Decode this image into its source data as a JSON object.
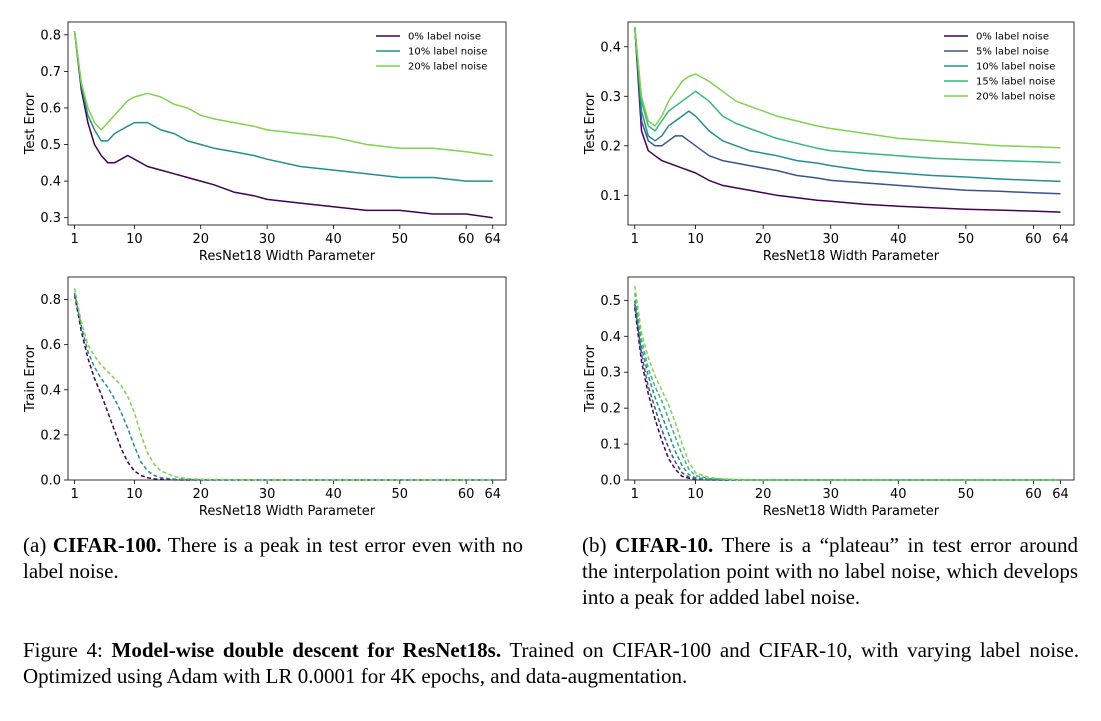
{
  "panels": [
    {
      "id": "a-test",
      "ylabel": "Test Error",
      "xlabel": "ResNet18 Width Parameter",
      "style": "solid",
      "xlim": [
        0,
        66
      ],
      "ylim": [
        0.28,
        0.835
      ],
      "yticks": [
        0.3,
        0.4,
        0.5,
        0.6,
        0.7,
        0.8
      ],
      "ytick_labels": [
        "0.3",
        "0.4",
        "0.5",
        "0.6",
        "0.7",
        "0.8"
      ],
      "legend": "top-right",
      "series": [
        "a-test-0",
        "a-test-10",
        "a-test-20"
      ]
    },
    {
      "id": "b-test",
      "ylabel": "Test Error",
      "xlabel": "ResNet18 Width Parameter",
      "style": "solid",
      "xlim": [
        0,
        66
      ],
      "ylim": [
        0.04,
        0.45
      ],
      "yticks": [
        0.1,
        0.2,
        0.3,
        0.4
      ],
      "ytick_labels": [
        "0.1",
        "0.2",
        "0.3",
        "0.4"
      ],
      "legend": "top-right",
      "series": [
        "b-test-0",
        "b-test-5",
        "b-test-10",
        "b-test-15",
        "b-test-20"
      ]
    },
    {
      "id": "a-train",
      "ylabel": "Train Error",
      "xlabel": "ResNet18 Width Parameter",
      "style": "dashed",
      "xlim": [
        0,
        66
      ],
      "ylim": [
        0,
        0.9
      ],
      "yticks": [
        0,
        0.2,
        0.4,
        0.6,
        0.8
      ],
      "ytick_labels": [
        "0.0",
        "0.2",
        "0.4",
        "0.6",
        "0.8"
      ],
      "legend": "none",
      "series": [
        "a-train-0",
        "a-train-10",
        "a-train-20"
      ]
    },
    {
      "id": "b-train",
      "ylabel": "Train Error",
      "xlabel": "ResNet18 Width Parameter",
      "style": "dashed",
      "xlim": [
        0,
        66
      ],
      "ylim": [
        0,
        0.565
      ],
      "yticks": [
        0,
        0.1,
        0.2,
        0.3,
        0.4,
        0.5
      ],
      "ytick_labels": [
        "0.0",
        "0.1",
        "0.2",
        "0.3",
        "0.4",
        "0.5"
      ],
      "legend": "none",
      "series": [
        "b-train-0",
        "b-train-5",
        "b-train-10",
        "b-train-15",
        "b-train-20"
      ]
    }
  ],
  "xticks": [
    1,
    10,
    20,
    30,
    40,
    50,
    60,
    64
  ],
  "xtick_labels": [
    "1",
    "10",
    "20",
    "30",
    "40",
    "50",
    "60",
    "64"
  ],
  "colors": {
    "noise_0": "#440154",
    "noise_5": "#3b528b",
    "noise_10": "#21908d",
    "noise_15": "#35b779",
    "noise_20": "#7fd34e",
    "axes": "#000000"
  },
  "chart_data": [
    {
      "type": "line",
      "panel": "a-test",
      "xlabel": "ResNet18 Width Parameter",
      "ylabel": "Test Error",
      "ylim": [
        0.28,
        0.835
      ],
      "series": [
        {
          "key": "a-test-0",
          "name": "0% label noise",
          "color": "#440154",
          "x": [
            1,
            2,
            3,
            4,
            5,
            6,
            7,
            8,
            9,
            10,
            12,
            14,
            16,
            18,
            20,
            22,
            25,
            28,
            30,
            35,
            40,
            45,
            50,
            55,
            60,
            64
          ],
          "y": [
            0.81,
            0.65,
            0.56,
            0.5,
            0.47,
            0.45,
            0.45,
            0.46,
            0.47,
            0.46,
            0.44,
            0.43,
            0.42,
            0.41,
            0.4,
            0.39,
            0.37,
            0.36,
            0.35,
            0.34,
            0.33,
            0.32,
            0.32,
            0.31,
            0.31,
            0.3
          ]
        },
        {
          "key": "a-test-10",
          "name": "10% label noise",
          "color": "#21908d",
          "x": [
            1,
            2,
            3,
            4,
            5,
            6,
            7,
            8,
            9,
            10,
            12,
            14,
            16,
            18,
            20,
            22,
            25,
            28,
            30,
            35,
            40,
            45,
            50,
            55,
            60,
            64
          ],
          "y": [
            0.81,
            0.66,
            0.58,
            0.54,
            0.51,
            0.51,
            0.53,
            0.54,
            0.55,
            0.56,
            0.56,
            0.54,
            0.53,
            0.51,
            0.5,
            0.49,
            0.48,
            0.47,
            0.46,
            0.44,
            0.43,
            0.42,
            0.41,
            0.41,
            0.4,
            0.4
          ]
        },
        {
          "key": "a-test-20",
          "name": "20% label noise",
          "color": "#7fd34e",
          "x": [
            1,
            2,
            3,
            4,
            5,
            6,
            7,
            8,
            9,
            10,
            12,
            14,
            16,
            18,
            20,
            22,
            25,
            28,
            30,
            35,
            40,
            45,
            50,
            55,
            60,
            64
          ],
          "y": [
            0.81,
            0.67,
            0.6,
            0.56,
            0.54,
            0.56,
            0.58,
            0.6,
            0.62,
            0.63,
            0.64,
            0.63,
            0.61,
            0.6,
            0.58,
            0.57,
            0.56,
            0.55,
            0.54,
            0.53,
            0.52,
            0.5,
            0.49,
            0.49,
            0.48,
            0.47
          ]
        }
      ]
    },
    {
      "type": "line",
      "panel": "b-test",
      "xlabel": "ResNet18 Width Parameter",
      "ylabel": "Test Error",
      "ylim": [
        0.04,
        0.45
      ],
      "series": [
        {
          "key": "b-test-0",
          "name": "0% label noise",
          "color": "#440154",
          "x": [
            1,
            2,
            3,
            4,
            5,
            6,
            7,
            8,
            9,
            10,
            12,
            14,
            16,
            18,
            20,
            22,
            25,
            28,
            30,
            35,
            40,
            45,
            50,
            55,
            60,
            64
          ],
          "y": [
            0.44,
            0.23,
            0.19,
            0.18,
            0.17,
            0.165,
            0.16,
            0.155,
            0.15,
            0.145,
            0.13,
            0.12,
            0.115,
            0.11,
            0.105,
            0.1,
            0.095,
            0.09,
            0.088,
            0.082,
            0.078,
            0.075,
            0.072,
            0.07,
            0.068,
            0.066
          ]
        },
        {
          "key": "b-test-5",
          "name": "5% label noise",
          "color": "#3b528b",
          "x": [
            1,
            2,
            3,
            4,
            5,
            6,
            7,
            8,
            9,
            10,
            12,
            14,
            16,
            18,
            20,
            22,
            25,
            28,
            30,
            35,
            40,
            45,
            50,
            55,
            60,
            64
          ],
          "y": [
            0.44,
            0.25,
            0.21,
            0.2,
            0.2,
            0.21,
            0.22,
            0.22,
            0.21,
            0.2,
            0.18,
            0.17,
            0.165,
            0.16,
            0.155,
            0.15,
            0.14,
            0.135,
            0.13,
            0.125,
            0.12,
            0.115,
            0.11,
            0.108,
            0.105,
            0.103
          ]
        },
        {
          "key": "b-test-10",
          "name": "10% label noise",
          "color": "#21908d",
          "x": [
            1,
            2,
            3,
            4,
            5,
            6,
            7,
            8,
            9,
            10,
            12,
            14,
            16,
            18,
            20,
            22,
            25,
            28,
            30,
            35,
            40,
            45,
            50,
            55,
            60,
            64
          ],
          "y": [
            0.44,
            0.27,
            0.22,
            0.21,
            0.22,
            0.24,
            0.25,
            0.26,
            0.27,
            0.26,
            0.23,
            0.21,
            0.2,
            0.19,
            0.185,
            0.18,
            0.17,
            0.165,
            0.16,
            0.15,
            0.145,
            0.14,
            0.137,
            0.133,
            0.13,
            0.128
          ]
        },
        {
          "key": "b-test-15",
          "name": "15% label noise",
          "color": "#35b779",
          "x": [
            1,
            2,
            3,
            4,
            5,
            6,
            7,
            8,
            9,
            10,
            12,
            14,
            16,
            18,
            20,
            22,
            25,
            28,
            30,
            35,
            40,
            45,
            50,
            55,
            60,
            64
          ],
          "y": [
            0.44,
            0.29,
            0.24,
            0.23,
            0.25,
            0.27,
            0.28,
            0.29,
            0.3,
            0.31,
            0.29,
            0.26,
            0.245,
            0.235,
            0.225,
            0.215,
            0.205,
            0.195,
            0.19,
            0.185,
            0.18,
            0.175,
            0.172,
            0.17,
            0.168,
            0.166
          ]
        },
        {
          "key": "b-test-20",
          "name": "20% label noise",
          "color": "#7fd34e",
          "x": [
            1,
            2,
            3,
            4,
            5,
            6,
            7,
            8,
            9,
            10,
            12,
            14,
            16,
            18,
            20,
            22,
            25,
            28,
            30,
            35,
            40,
            45,
            50,
            55,
            60,
            64
          ],
          "y": [
            0.44,
            0.3,
            0.25,
            0.24,
            0.26,
            0.29,
            0.31,
            0.33,
            0.34,
            0.345,
            0.33,
            0.31,
            0.29,
            0.28,
            0.27,
            0.26,
            0.25,
            0.24,
            0.235,
            0.225,
            0.215,
            0.21,
            0.205,
            0.2,
            0.198,
            0.196
          ]
        }
      ]
    },
    {
      "type": "line",
      "panel": "a-train",
      "xlabel": "ResNet18 Width Parameter",
      "ylabel": "Train Error",
      "ylim": [
        0,
        0.9
      ],
      "series": [
        {
          "key": "a-train-0",
          "color": "#440154",
          "x": [
            1,
            2,
            3,
            4,
            5,
            6,
            7,
            8,
            9,
            10,
            11,
            12,
            13,
            14,
            16,
            18,
            20,
            25,
            30,
            40,
            50,
            64
          ],
          "y": [
            0.82,
            0.66,
            0.54,
            0.45,
            0.38,
            0.3,
            0.22,
            0.14,
            0.08,
            0.04,
            0.02,
            0.01,
            0.005,
            0.003,
            0.001,
            0,
            0,
            0,
            0,
            0,
            0,
            0
          ]
        },
        {
          "key": "a-train-10",
          "color": "#21908d",
          "x": [
            1,
            2,
            3,
            4,
            5,
            6,
            7,
            8,
            9,
            10,
            11,
            12,
            13,
            14,
            16,
            18,
            20,
            25,
            30,
            40,
            50,
            64
          ],
          "y": [
            0.83,
            0.68,
            0.57,
            0.5,
            0.45,
            0.41,
            0.36,
            0.3,
            0.23,
            0.15,
            0.08,
            0.04,
            0.02,
            0.01,
            0.004,
            0.002,
            0.001,
            0,
            0,
            0,
            0,
            0
          ]
        },
        {
          "key": "a-train-20",
          "color": "#7fd34e",
          "x": [
            1,
            2,
            3,
            4,
            5,
            6,
            7,
            8,
            9,
            10,
            11,
            12,
            13,
            14,
            16,
            18,
            20,
            25,
            30,
            40,
            50,
            64
          ],
          "y": [
            0.85,
            0.7,
            0.6,
            0.55,
            0.51,
            0.48,
            0.45,
            0.42,
            0.37,
            0.3,
            0.2,
            0.12,
            0.07,
            0.04,
            0.015,
            0.006,
            0.003,
            0.001,
            0,
            0,
            0,
            0
          ]
        }
      ]
    },
    {
      "type": "line",
      "panel": "b-train",
      "xlabel": "ResNet18 Width Parameter",
      "ylabel": "Train Error",
      "ylim": [
        0,
        0.565
      ],
      "series": [
        {
          "key": "b-train-0",
          "color": "#440154",
          "x": [
            1,
            2,
            3,
            4,
            5,
            6,
            7,
            8,
            9,
            10,
            12,
            14,
            16,
            18,
            20,
            25,
            30,
            40,
            50,
            64
          ],
          "y": [
            0.48,
            0.33,
            0.24,
            0.17,
            0.11,
            0.06,
            0.03,
            0.01,
            0.005,
            0.002,
            0,
            0,
            0,
            0,
            0,
            0,
            0,
            0,
            0,
            0
          ]
        },
        {
          "key": "b-train-5",
          "color": "#3b528b",
          "x": [
            1,
            2,
            3,
            4,
            5,
            6,
            7,
            8,
            9,
            10,
            12,
            14,
            16,
            18,
            20,
            25,
            30,
            40,
            50,
            64
          ],
          "y": [
            0.49,
            0.35,
            0.26,
            0.2,
            0.14,
            0.09,
            0.05,
            0.02,
            0.008,
            0.003,
            0.001,
            0,
            0,
            0,
            0,
            0,
            0,
            0,
            0,
            0
          ]
        },
        {
          "key": "b-train-10",
          "color": "#21908d",
          "x": [
            1,
            2,
            3,
            4,
            5,
            6,
            7,
            8,
            9,
            10,
            12,
            14,
            16,
            18,
            20,
            25,
            30,
            40,
            50,
            64
          ],
          "y": [
            0.5,
            0.37,
            0.29,
            0.23,
            0.18,
            0.13,
            0.08,
            0.04,
            0.015,
            0.006,
            0.002,
            0.001,
            0,
            0,
            0,
            0,
            0,
            0,
            0,
            0
          ]
        },
        {
          "key": "b-train-15",
          "color": "#35b779",
          "x": [
            1,
            2,
            3,
            4,
            5,
            6,
            7,
            8,
            9,
            10,
            12,
            14,
            16,
            18,
            20,
            25,
            30,
            40,
            50,
            64
          ],
          "y": [
            0.52,
            0.39,
            0.31,
            0.26,
            0.22,
            0.17,
            0.12,
            0.07,
            0.03,
            0.012,
            0.004,
            0.002,
            0.001,
            0,
            0,
            0,
            0,
            0,
            0,
            0
          ]
        },
        {
          "key": "b-train-20",
          "color": "#7fd34e",
          "x": [
            1,
            2,
            3,
            4,
            5,
            6,
            7,
            8,
            9,
            10,
            12,
            14,
            16,
            18,
            20,
            25,
            30,
            40,
            50,
            64
          ],
          "y": [
            0.54,
            0.41,
            0.34,
            0.29,
            0.25,
            0.21,
            0.16,
            0.1,
            0.05,
            0.02,
            0.007,
            0.003,
            0.001,
            0,
            0,
            0,
            0,
            0,
            0,
            0
          ]
        }
      ]
    }
  ],
  "captions": {
    "a_prefix": "(a) ",
    "a_bold": "CIFAR-100.",
    "a_text": " There is a peak in test error even with no label noise.",
    "b_prefix": "(b) ",
    "b_bold": "CIFAR-10.",
    "b_text": " There is a “plateau” in test error around the interpolation point with no label noise, which develops into a peak for added label noise.",
    "main_prefix": "Figure 4: ",
    "main_bold": "Model-wise double descent for ResNet18s.",
    "main_text": " Trained on CIFAR-100 and CIFAR-10, with varying label noise. Optimized using Adam with LR 0.0001 for 4K epochs, and data-augmentation."
  }
}
